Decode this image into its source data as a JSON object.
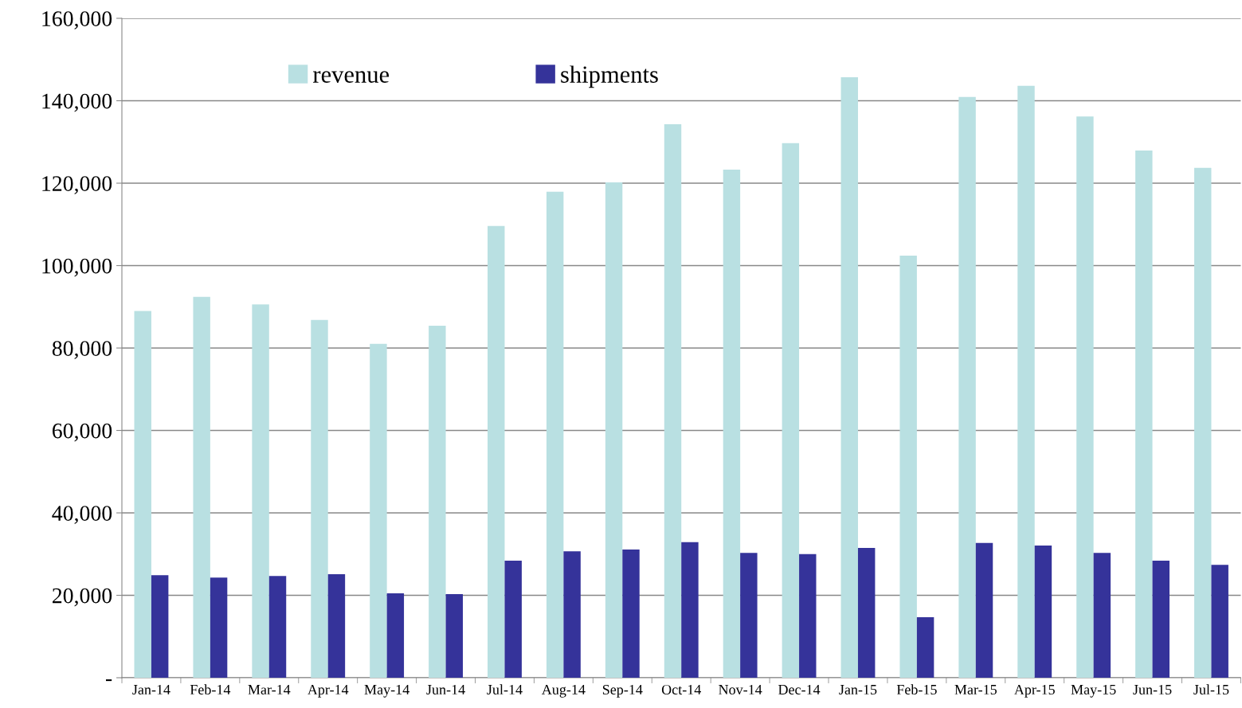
{
  "chart_data": {
    "type": "bar",
    "categories": [
      "Jan-14",
      "Feb-14",
      "Mar-14",
      "Apr-14",
      "May-14",
      "Jun-14",
      "Jul-14",
      "Aug-14",
      "Sep-14",
      "Oct-14",
      "Nov-14",
      "Dec-14",
      "Jan-15",
      "Feb-15",
      "Mar-15",
      "Apr-15",
      "May-15",
      "Jun-15",
      "Jul-15"
    ],
    "series": [
      {
        "name": "revenue",
        "color": "#b9e0e2",
        "values": [
          89000,
          92400,
          90600,
          86800,
          81000,
          85400,
          109600,
          117900,
          120200,
          134300,
          123300,
          129700,
          145700,
          102400,
          140900,
          143600,
          136200,
          127900,
          123700
        ]
      },
      {
        "name": "shipments",
        "color": "#35339a",
        "values": [
          24900,
          24300,
          24700,
          25100,
          20500,
          20300,
          28400,
          30700,
          31100,
          32900,
          30300,
          30000,
          31500,
          14700,
          32700,
          32100,
          30300,
          28400,
          27400
        ]
      }
    ],
    "ylim": [
      0,
      160000
    ],
    "yticks": [
      {
        "value": 0,
        "label": "-"
      },
      {
        "value": 20000,
        "label": "20,000"
      },
      {
        "value": 40000,
        "label": "40,000"
      },
      {
        "value": 60000,
        "label": "60,000"
      },
      {
        "value": 80000,
        "label": "80,000"
      },
      {
        "value": 100000,
        "label": "100,000"
      },
      {
        "value": 120000,
        "label": "120,000"
      },
      {
        "value": 140000,
        "label": "140,000"
      },
      {
        "value": 160000,
        "label": "160,000"
      }
    ],
    "grid": "y",
    "legend": "top left"
  }
}
